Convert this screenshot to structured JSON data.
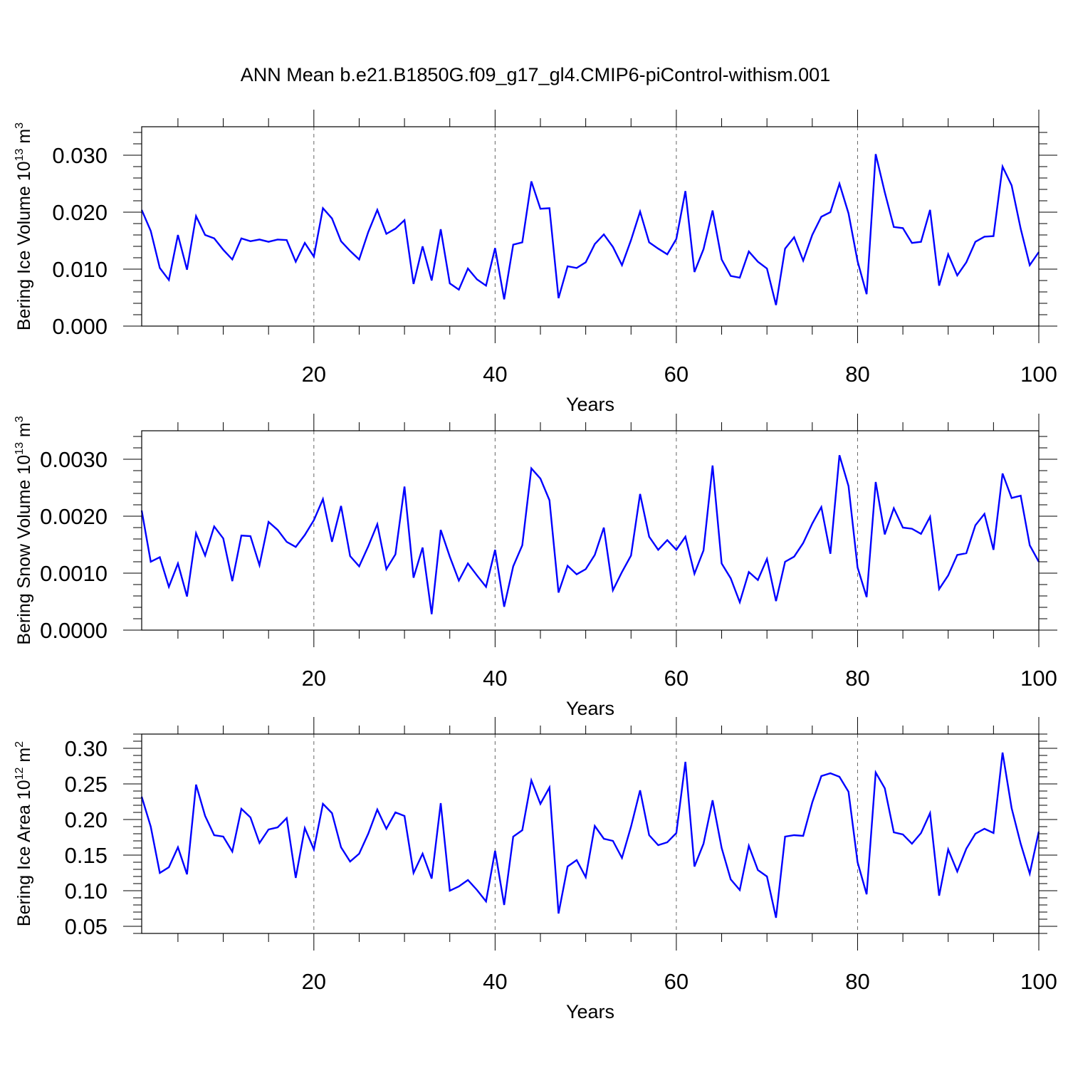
{
  "title": "ANN Mean b.e21.B1850G.f09_g17_gl4.CMIP6-piControl-withism.001",
  "chart_data": [
    {
      "type": "line",
      "ylabel_main": "Bering Ice Volume 10",
      "ylabel_exp": "13",
      "ylabel_unit": " m",
      "ylabel_unit_exp": "3",
      "xlabel": "Years",
      "xlim": [
        1,
        100
      ],
      "ylim": [
        0,
        0.035
      ],
      "x_ticks": [
        20,
        40,
        60,
        80,
        100
      ],
      "y_ticks": [
        0.0,
        0.01,
        0.02,
        0.03
      ],
      "y_tick_labels": [
        "0.000",
        "0.010",
        "0.020",
        "0.030"
      ],
      "color": "#0000ff",
      "values": [
        0.0204,
        0.0167,
        0.0102,
        0.0081,
        0.016,
        0.0099,
        0.0193,
        0.016,
        0.0154,
        0.0134,
        0.0117,
        0.0154,
        0.0149,
        0.0152,
        0.0148,
        0.0152,
        0.0151,
        0.0113,
        0.0146,
        0.0122,
        0.0207,
        0.0189,
        0.0149,
        0.0132,
        0.0117,
        0.0165,
        0.0204,
        0.0162,
        0.0171,
        0.0186,
        0.0074,
        0.014,
        0.008,
        0.017,
        0.0075,
        0.0064,
        0.0101,
        0.0082,
        0.0071,
        0.0137,
        0.0047,
        0.0143,
        0.0147,
        0.0254,
        0.0206,
        0.0207,
        0.0049,
        0.0105,
        0.0102,
        0.0112,
        0.0144,
        0.0161,
        0.0139,
        0.0107,
        0.0151,
        0.0201,
        0.0147,
        0.0136,
        0.0126,
        0.0153,
        0.0237,
        0.0095,
        0.0135,
        0.0203,
        0.0117,
        0.0088,
        0.0085,
        0.0131,
        0.0113,
        0.0101,
        0.0037,
        0.0136,
        0.0156,
        0.0115,
        0.016,
        0.0192,
        0.02,
        0.025,
        0.0198,
        0.0114,
        0.0056,
        0.0302,
        0.0235,
        0.0174,
        0.0172,
        0.0146,
        0.0148,
        0.0204,
        0.0071,
        0.0126,
        0.0089,
        0.0112,
        0.0148,
        0.0157,
        0.0158,
        0.028,
        0.0247,
        0.0171,
        0.0107,
        0.013
      ]
    },
    {
      "type": "line",
      "ylabel_main": "Bering Snow Volume 10",
      "ylabel_exp": "13",
      "ylabel_unit": " m",
      "ylabel_unit_exp": "3",
      "xlabel": "Years",
      "xlim": [
        1,
        100
      ],
      "ylim": [
        0,
        0.0035
      ],
      "x_ticks": [
        20,
        40,
        60,
        80,
        100
      ],
      "y_ticks": [
        0.0,
        0.001,
        0.002,
        0.003
      ],
      "y_tick_labels": [
        "0.0000",
        "0.0010",
        "0.0020",
        "0.0030"
      ],
      "color": "#0000ff",
      "values": [
        0.0021,
        0.0012,
        0.00128,
        0.00076,
        0.00117,
        0.00059,
        0.0017,
        0.00131,
        0.00182,
        0.00161,
        0.00086,
        0.00166,
        0.00165,
        0.00114,
        0.0019,
        0.00176,
        0.00155,
        0.00146,
        0.00167,
        0.00193,
        0.0023,
        0.00155,
        0.00218,
        0.0013,
        0.00112,
        0.00147,
        0.00186,
        0.00107,
        0.00133,
        0.00252,
        0.00092,
        0.00145,
        0.00028,
        0.00176,
        0.00129,
        0.00087,
        0.00117,
        0.00096,
        0.00076,
        0.00141,
        0.00041,
        0.00112,
        0.00149,
        0.00284,
        0.00266,
        0.00228,
        0.00066,
        0.00113,
        0.00098,
        0.00107,
        0.00132,
        0.0018,
        0.0007,
        0.00102,
        0.00131,
        0.00239,
        0.00164,
        0.00141,
        0.00158,
        0.00141,
        0.00164,
        0.00099,
        0.0014,
        0.00289,
        0.00117,
        0.00091,
        0.00049,
        0.00102,
        0.00088,
        0.00125,
        0.00051,
        0.0012,
        0.00129,
        0.00153,
        0.00187,
        0.00216,
        0.00134,
        0.00307,
        0.00253,
        0.0011,
        0.00058,
        0.0026,
        0.00168,
        0.00214,
        0.0018,
        0.00178,
        0.00169,
        0.00199,
        0.00072,
        0.00096,
        0.00132,
        0.00135,
        0.00184,
        0.00204,
        0.00141,
        0.00275,
        0.00232,
        0.00236,
        0.00149,
        0.0012
      ]
    },
    {
      "type": "line",
      "ylabel_main": "Bering Ice Area 10",
      "ylabel_exp": "12",
      "ylabel_unit": " m",
      "ylabel_unit_exp": "2",
      "xlabel": "Years",
      "xlim": [
        1,
        100
      ],
      "ylim": [
        0.04,
        0.32
      ],
      "x_ticks": [
        20,
        40,
        60,
        80,
        100
      ],
      "y_ticks": [
        0.05,
        0.1,
        0.15,
        0.2,
        0.25,
        0.3
      ],
      "y_tick_labels": [
        "0.05",
        "0.10",
        "0.15",
        "0.20",
        "0.25",
        "0.30"
      ],
      "color": "#0000ff",
      "values": [
        0.232,
        0.19,
        0.125,
        0.133,
        0.161,
        0.123,
        0.249,
        0.205,
        0.178,
        0.176,
        0.155,
        0.215,
        0.203,
        0.167,
        0.186,
        0.189,
        0.202,
        0.118,
        0.188,
        0.158,
        0.222,
        0.209,
        0.161,
        0.141,
        0.152,
        0.18,
        0.214,
        0.187,
        0.21,
        0.205,
        0.125,
        0.152,
        0.117,
        0.223,
        0.1,
        0.106,
        0.115,
        0.101,
        0.085,
        0.156,
        0.08,
        0.176,
        0.185,
        0.255,
        0.222,
        0.245,
        0.068,
        0.134,
        0.143,
        0.119,
        0.191,
        0.173,
        0.17,
        0.146,
        0.19,
        0.241,
        0.178,
        0.164,
        0.168,
        0.181,
        0.281,
        0.134,
        0.166,
        0.227,
        0.16,
        0.116,
        0.101,
        0.163,
        0.129,
        0.12,
        0.062,
        0.176,
        0.178,
        0.177,
        0.224,
        0.261,
        0.265,
        0.26,
        0.239,
        0.14,
        0.095,
        0.266,
        0.244,
        0.182,
        0.179,
        0.166,
        0.181,
        0.209,
        0.093,
        0.158,
        0.127,
        0.159,
        0.18,
        0.187,
        0.181,
        0.294,
        0.216,
        0.166,
        0.124,
        0.183
      ]
    }
  ]
}
